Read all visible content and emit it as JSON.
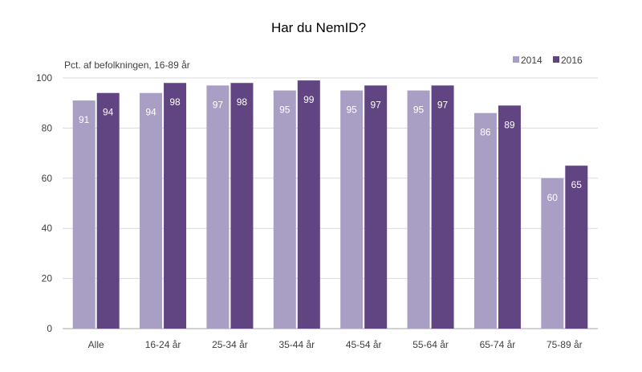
{
  "chart_data": {
    "type": "bar",
    "title": "Har du NemID?",
    "subtitle": "Pct. af befolkningen, 16-89 år",
    "xlabel": "",
    "ylabel": "",
    "categories": [
      "Alle",
      "16-24 år",
      "25-34 år",
      "35-44 år",
      "45-54 år",
      "55-64 år",
      "65-74 år",
      "75-89 år"
    ],
    "series": [
      {
        "name": "2014",
        "color": "#a99fc4",
        "values": [
          91,
          94,
          97,
          95,
          95,
          95,
          86,
          60
        ]
      },
      {
        "name": "2016",
        "color": "#604582",
        "values": [
          94,
          98,
          98,
          99,
          97,
          97,
          89,
          65
        ]
      }
    ],
    "yticks": [
      0,
      20,
      40,
      60,
      80,
      100
    ],
    "ylim": [
      0,
      100
    ],
    "grid": true,
    "legend_position": "top-right"
  }
}
